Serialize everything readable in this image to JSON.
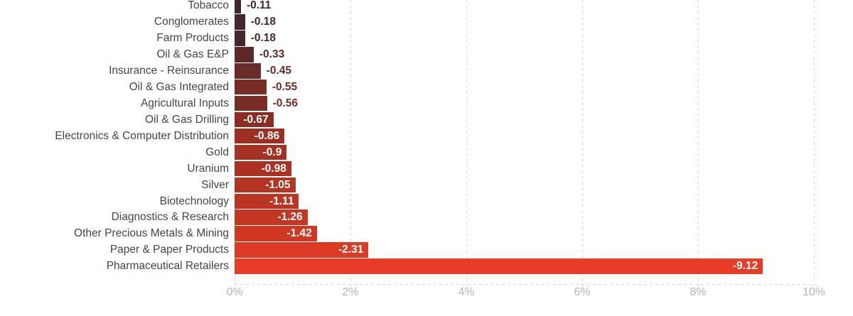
{
  "chart_data": {
    "type": "bar",
    "orientation": "horizontal",
    "title": "",
    "xlabel": "",
    "ylabel": "",
    "legend": "none",
    "grid": "vertical-dashed",
    "axis_note": "bars plot absolute magnitude of negative performance values on a 0-10% axis",
    "categories": [
      "Tobacco",
      "Conglomerates",
      "Farm Products",
      "Oil & Gas E&P",
      "Insurance - Reinsurance",
      "Oil & Gas Integrated",
      "Agricultural Inputs",
      "Oil & Gas Drilling",
      "Electronics & Computer Distribution",
      "Gold",
      "Uranium",
      "Silver",
      "Biotechnology",
      "Diagnostics & Research",
      "Other Precious Metals & Mining",
      "Paper & Paper Products",
      "Pharmaceutical Retailers"
    ],
    "values": [
      -0.11,
      -0.18,
      -0.18,
      -0.33,
      -0.45,
      -0.55,
      -0.56,
      -0.67,
      -0.86,
      -0.9,
      -0.98,
      -1.05,
      -1.11,
      -1.26,
      -1.42,
      -2.31,
      -9.12
    ],
    "value_labels": [
      "-0.11",
      "-0.18",
      "-0.18",
      "-0.33",
      "-0.45",
      "-0.55",
      "-0.56",
      "-0.67",
      "-0.86",
      "-0.9",
      "-0.98",
      "-1.05",
      "-1.11",
      "-1.26",
      "-1.42",
      "-2.31",
      "-9.12"
    ],
    "bar_colors": [
      "#3f2629",
      "#47282a",
      "#47282a",
      "#5b2a28",
      "#6a2c26",
      "#752d25",
      "#772d25",
      "#8a2e23",
      "#9d3022",
      "#a43122",
      "#ab3222",
      "#b33421",
      "#bb3522",
      "#c43622",
      "#cf3823",
      "#dd3a26",
      "#e63c28"
    ],
    "label_inside": [
      false,
      false,
      false,
      false,
      false,
      false,
      false,
      true,
      true,
      true,
      true,
      true,
      true,
      true,
      true,
      true,
      true
    ],
    "xlim": [
      0,
      10
    ],
    "x_ticks": {
      "values": [
        0,
        2,
        4,
        6,
        8,
        10
      ],
      "labels": [
        "0%",
        "2%",
        "4%",
        "6%",
        "8%",
        "10%"
      ]
    }
  },
  "colors": {
    "background": "#ffffff",
    "category_label": "#454545",
    "tick_label": "#b4b4b4",
    "gridline": "#d9d9d9",
    "value_label_inside": "#ffffff"
  }
}
